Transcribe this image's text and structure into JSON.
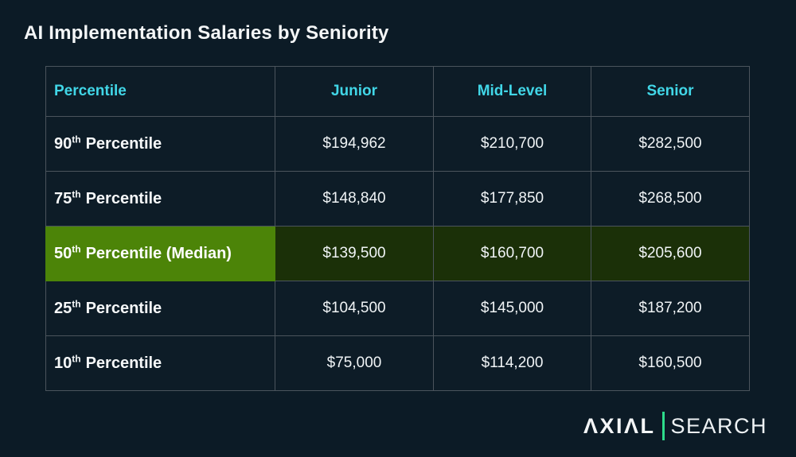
{
  "page": {
    "title": "AI Implementation Salaries by Seniority"
  },
  "table": {
    "headers": [
      "Percentile",
      "Junior",
      "Mid-Level",
      "Senior"
    ],
    "rows": [
      {
        "label_base": "90",
        "label_sup": "th",
        "label_rest": "Percentile",
        "highlight": false,
        "junior": "$194,962",
        "mid": "$210,700",
        "senior": "$282,500"
      },
      {
        "label_base": "75",
        "label_sup": "th",
        "label_rest": "Percentile",
        "highlight": false,
        "junior": "$148,840",
        "mid": "$177,850",
        "senior": "$268,500"
      },
      {
        "label_base": "50",
        "label_sup": "th",
        "label_rest": "Percentile (Median)",
        "highlight": true,
        "junior": "$139,500",
        "mid": "$160,700",
        "senior": "$205,600"
      },
      {
        "label_base": "25",
        "label_sup": "th",
        "label_rest": "Percentile",
        "highlight": false,
        "junior": "$104,500",
        "mid": "$145,000",
        "senior": "$187,200"
      },
      {
        "label_base": "10",
        "label_sup": "th",
        "label_rest": "Percentile",
        "highlight": false,
        "junior": "$75,000",
        "mid": "$114,200",
        "senior": "$160,500"
      }
    ]
  },
  "chart_data": {
    "type": "table",
    "title": "AI Implementation Salaries by Seniority",
    "columns": [
      "Junior",
      "Mid-Level",
      "Senior"
    ],
    "row_labels": [
      "90th Percentile",
      "75th Percentile",
      "50th Percentile (Median)",
      "25th Percentile",
      "10th Percentile"
    ],
    "values": [
      [
        194962,
        210700,
        282500
      ],
      [
        148840,
        177850,
        268500
      ],
      [
        139500,
        160700,
        205600
      ],
      [
        104500,
        145000,
        187200
      ],
      [
        75000,
        114200,
        160500
      ]
    ],
    "highlighted_row": "50th Percentile (Median)",
    "unit": "USD"
  },
  "brand": {
    "wordmark": "ΛXIΛL",
    "suffix": "SEARCH",
    "accent_color": "#2ddc8b"
  },
  "colors": {
    "background": "#0c1b26",
    "header_text": "#41d6e7",
    "border": "#4b545c",
    "highlight_label_bg": "#4c8408",
    "highlight_value_bg": "#1b3008"
  }
}
